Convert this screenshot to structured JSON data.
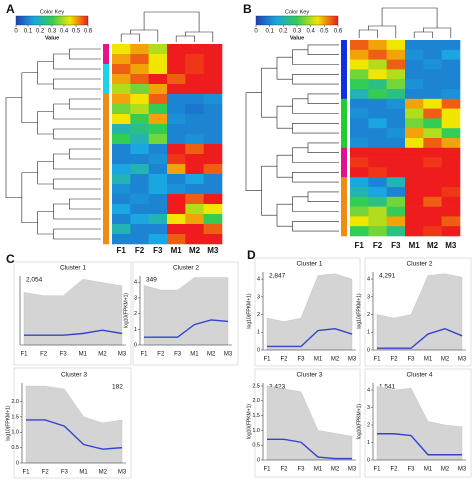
{
  "chart_data": [
    {
      "type": "heatmap",
      "panel": "A",
      "key_title": "Color Key",
      "key_label": "Value",
      "key_ticks": [
        0,
        0.1,
        0.2,
        0.3,
        0.4,
        0.5,
        0.6
      ],
      "colors": [
        "#1f3fb8",
        "#1aa6e0",
        "#33cc55",
        "#f2e600",
        "#ee1c1c"
      ],
      "categories": [
        "F1",
        "F2",
        "F3",
        "M1",
        "M2",
        "M3"
      ],
      "row_colors": [
        "#e6138a",
        "#e6138a",
        "#19d3e6",
        "#19d3e6",
        "#19d3e6",
        "#f08c14",
        "#f08c14",
        "#f08c14",
        "#f08c14",
        "#f08c14",
        "#f08c14",
        "#f08c14",
        "#f08c14",
        "#f08c14",
        "#f08c14",
        "#f08c14",
        "#f08c14",
        "#f08c14",
        "#f08c14",
        "#f08c14"
      ],
      "matrix": [
        [
          0.45,
          0.5,
          0.4,
          0.6,
          0.6,
          0.6
        ],
        [
          0.5,
          0.55,
          0.45,
          0.6,
          0.58,
          0.6
        ],
        [
          0.55,
          0.5,
          0.45,
          0.6,
          0.58,
          0.6
        ],
        [
          0.5,
          0.55,
          0.6,
          0.55,
          0.6,
          0.6
        ],
        [
          0.4,
          0.35,
          0.5,
          0.6,
          0.6,
          0.6
        ],
        [
          0.5,
          0.45,
          0.55,
          0.1,
          0.1,
          0.12
        ],
        [
          0.35,
          0.4,
          0.3,
          0.1,
          0.08,
          0.1
        ],
        [
          0.45,
          0.3,
          0.5,
          0.12,
          0.1,
          0.1
        ],
        [
          0.2,
          0.25,
          0.3,
          0.1,
          0.1,
          0.1
        ],
        [
          0.3,
          0.2,
          0.35,
          0.1,
          0.12,
          0.1
        ],
        [
          0.1,
          0.15,
          0.1,
          0.6,
          0.55,
          0.6
        ],
        [
          0.1,
          0.1,
          0.12,
          0.58,
          0.6,
          0.6
        ],
        [
          0.15,
          0.2,
          0.1,
          0.5,
          0.6,
          0.55
        ],
        [
          0.2,
          0.1,
          0.15,
          0.1,
          0.15,
          0.1
        ],
        [
          0.12,
          0.1,
          0.15,
          0.12,
          0.1,
          0.1
        ],
        [
          0.1,
          0.12,
          0.1,
          0.6,
          0.55,
          0.6
        ],
        [
          0.15,
          0.1,
          0.1,
          0.6,
          0.4,
          0.45
        ],
        [
          0.1,
          0.15,
          0.2,
          0.45,
          0.5,
          0.3
        ],
        [
          0.2,
          0.1,
          0.1,
          0.6,
          0.6,
          0.55
        ],
        [
          0.1,
          0.1,
          0.15,
          0.55,
          0.6,
          0.6
        ]
      ]
    },
    {
      "type": "heatmap",
      "panel": "B",
      "key_title": "Color Key",
      "key_label": "Value",
      "key_ticks": [
        0,
        0.1,
        0.2,
        0.3,
        0.4,
        0.5,
        0.6
      ],
      "colors": [
        "#1f3fb8",
        "#1aa6e0",
        "#33cc55",
        "#f2e600",
        "#ee1c1c"
      ],
      "categories": [
        "F1",
        "F2",
        "F3",
        "M1",
        "M2",
        "M3"
      ],
      "row_colors": [
        "#1030e0",
        "#1030e0",
        "#1030e0",
        "#1030e0",
        "#1030e0",
        "#1030e0",
        "#22cc33",
        "#22cc33",
        "#22cc33",
        "#22cc33",
        "#22cc33",
        "#e0138a",
        "#e0138a",
        "#e0138a",
        "#f08c14",
        "#f08c14",
        "#f08c14",
        "#f08c14",
        "#f08c14",
        "#f08c14"
      ],
      "matrix": [
        [
          0.55,
          0.5,
          0.45,
          0.1,
          0.1,
          0.1
        ],
        [
          0.5,
          0.55,
          0.5,
          0.12,
          0.1,
          0.15
        ],
        [
          0.45,
          0.4,
          0.55,
          0.1,
          0.12,
          0.1
        ],
        [
          0.35,
          0.45,
          0.4,
          0.1,
          0.1,
          0.1
        ],
        [
          0.3,
          0.25,
          0.35,
          0.12,
          0.1,
          0.1
        ],
        [
          0.2,
          0.3,
          0.25,
          0.1,
          0.1,
          0.12
        ],
        [
          0.1,
          0.1,
          0.12,
          0.5,
          0.45,
          0.55
        ],
        [
          0.12,
          0.1,
          0.1,
          0.4,
          0.55,
          0.45
        ],
        [
          0.1,
          0.15,
          0.1,
          0.35,
          0.3,
          0.45
        ],
        [
          0.1,
          0.1,
          0.12,
          0.5,
          0.4,
          0.3
        ],
        [
          0.12,
          0.1,
          0.1,
          0.45,
          0.55,
          0.5
        ],
        [
          0.6,
          0.6,
          0.6,
          0.6,
          0.6,
          0.6
        ],
        [
          0.58,
          0.6,
          0.6,
          0.6,
          0.58,
          0.6
        ],
        [
          0.6,
          0.58,
          0.6,
          0.6,
          0.6,
          0.6
        ],
        [
          0.15,
          0.1,
          0.2,
          0.6,
          0.6,
          0.6
        ],
        [
          0.2,
          0.15,
          0.1,
          0.6,
          0.6,
          0.58
        ],
        [
          0.3,
          0.25,
          0.35,
          0.6,
          0.55,
          0.6
        ],
        [
          0.35,
          0.4,
          0.3,
          0.6,
          0.6,
          0.6
        ],
        [
          0.45,
          0.4,
          0.5,
          0.6,
          0.6,
          0.55
        ],
        [
          0.3,
          0.35,
          0.25,
          0.6,
          0.58,
          0.6
        ]
      ]
    },
    {
      "type": "line",
      "panel": "C",
      "title": "Cluster 1",
      "count": "2,054",
      "categories": [
        "F1",
        "F2",
        "F3",
        "M1",
        "M2",
        "M3"
      ],
      "values": [
        0.3,
        0.3,
        0.3,
        0.35,
        0.45,
        0.35
      ],
      "upper": [
        1.6,
        1.5,
        1.5,
        2.0,
        1.9,
        1.8
      ],
      "color": "#3344cc",
      "ylim": [
        0,
        2.1
      ],
      "yticks": []
    },
    {
      "type": "line",
      "title": "Cluster 2",
      "count": "349",
      "ylabel": "log10(FPKM+1)",
      "categories": [
        "F1",
        "F2",
        "F3",
        "M1",
        "M2",
        "M3"
      ],
      "values": [
        0.5,
        0.5,
        0.5,
        1.3,
        1.6,
        1.5
      ],
      "upper": [
        3.8,
        3.5,
        3.5,
        4.3,
        4.3,
        4.3
      ],
      "color": "#3344cc",
      "ylim": [
        0,
        4.4
      ],
      "yticks": [
        0,
        1,
        2,
        3,
        4
      ]
    },
    {
      "type": "line",
      "title": "Cluster 3",
      "count": "182",
      "ylabel": "log10(FPKM+1)",
      "categories": [
        "F1",
        "F2",
        "F3",
        "M1",
        "M2",
        "M3"
      ],
      "values": [
        1.4,
        1.4,
        1.2,
        0.6,
        0.45,
        0.5
      ],
      "upper": [
        2.5,
        2.5,
        2.4,
        1.5,
        1.3,
        1.4
      ],
      "color": "#3344cc",
      "ylim": [
        0,
        2.6
      ],
      "yticks": [
        0,
        0.5,
        {
          "value": 1,
          "label": "1.0"
        },
        1.5,
        {
          "value": 2,
          "label": "2.0"
        }
      ]
    },
    {
      "type": "line",
      "panel": "D",
      "title": "Cluster 1",
      "count": "2,847",
      "ylabel": "log10(FPKM+1)",
      "categories": [
        "F1",
        "F2",
        "F3",
        "M1",
        "M2",
        "M3"
      ],
      "values": [
        0.2,
        0.2,
        0.2,
        1.1,
        1.2,
        0.9
      ],
      "upper": [
        1.8,
        1.6,
        1.8,
        4.2,
        4.3,
        4.0
      ],
      "color": "#3344cc",
      "ylim": [
        0,
        4.4
      ],
      "yticks": [
        0,
        1,
        2,
        3,
        4
      ]
    },
    {
      "type": "line",
      "title": "Cluster 2",
      "count": "4,291",
      "ylabel": "log10(FPKM+1)",
      "categories": [
        "F1",
        "F2",
        "F3",
        "M1",
        "M2",
        "M3"
      ],
      "values": [
        0.1,
        0.1,
        0.1,
        0.9,
        1.2,
        0.8
      ],
      "upper": [
        2.0,
        1.8,
        2.0,
        4.2,
        4.3,
        4.1
      ],
      "color": "#3344cc",
      "ylim": [
        0,
        4.4
      ],
      "yticks": [
        0,
        1,
        2,
        3,
        4
      ]
    },
    {
      "type": "line",
      "title": "Cluster 3",
      "count": "3,423",
      "ylabel": "log10(FPKM+1)",
      "categories": [
        "F1",
        "F2",
        "F3",
        "M1",
        "M2",
        "M3"
      ],
      "values": [
        0.7,
        0.7,
        0.6,
        0.1,
        0.05,
        0.05
      ],
      "upper": [
        2.5,
        2.4,
        2.3,
        1.0,
        0.9,
        0.8
      ],
      "color": "#3344cc",
      "ylim": [
        0,
        2.6
      ],
      "yticks": [
        0,
        0.5,
        {
          "value": 1,
          "label": "1.0"
        },
        1.5,
        {
          "value": 2,
          "label": "2.0"
        },
        2.5
      ]
    },
    {
      "type": "line",
      "title": "Cluster 4",
      "count": "1,541",
      "ylabel": "log10(FPKM+1)",
      "categories": [
        "F1",
        "F2",
        "F3",
        "M1",
        "M2",
        "M3"
      ],
      "values": [
        1.5,
        1.5,
        1.4,
        0.3,
        0.3,
        0.3
      ],
      "upper": [
        4.2,
        4.0,
        4.1,
        2.2,
        2.0,
        1.9
      ],
      "color": "#3344cc",
      "ylim": [
        0,
        4.4
      ],
      "yticks": [
        0,
        1,
        2,
        3,
        4
      ]
    }
  ]
}
